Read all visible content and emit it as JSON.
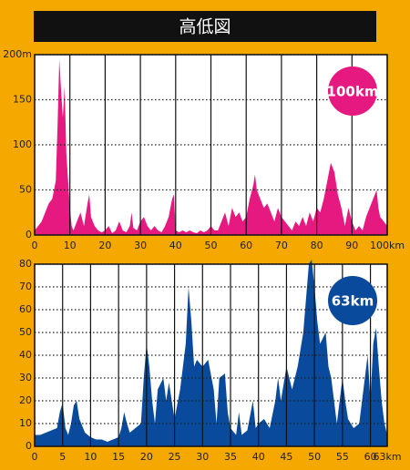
{
  "title": "高低図",
  "chart_data": [
    {
      "type": "area",
      "badge": "100km",
      "color": "#e5197f",
      "badge_color": "#e5197f",
      "x": [
        0,
        1,
        2,
        3,
        4,
        5,
        6,
        6.5,
        7,
        7.5,
        8,
        8.5,
        9,
        10,
        10.5,
        11,
        12,
        13,
        14,
        15,
        15.5,
        16,
        17,
        18,
        19,
        20,
        21,
        22,
        23,
        24,
        25,
        26,
        27,
        27.5,
        28,
        29,
        30,
        31,
        32,
        33,
        34,
        35,
        36,
        37,
        38,
        39,
        39.5,
        40,
        41,
        42,
        43,
        44,
        45,
        46,
        47,
        48,
        49,
        50,
        51,
        52,
        53,
        54,
        55,
        56,
        57,
        58,
        59,
        60,
        61,
        62,
        62.5,
        63,
        64,
        65,
        66,
        67,
        68,
        69,
        70,
        71,
        72,
        73,
        74,
        75,
        76,
        77,
        78,
        79,
        80,
        81,
        82,
        83,
        84,
        85,
        86,
        87,
        88,
        89,
        90,
        91,
        92,
        93,
        94,
        95,
        96,
        97,
        97.5,
        98,
        99,
        100
      ],
      "values": [
        5,
        10,
        15,
        25,
        35,
        40,
        60,
        120,
        195,
        160,
        130,
        165,
        90,
        30,
        10,
        5,
        15,
        25,
        10,
        35,
        45,
        20,
        10,
        5,
        3,
        5,
        10,
        2,
        5,
        15,
        5,
        3,
        10,
        25,
        8,
        5,
        15,
        20,
        10,
        5,
        10,
        5,
        3,
        10,
        20,
        40,
        45,
        5,
        3,
        5,
        3,
        5,
        3,
        2,
        5,
        3,
        5,
        10,
        5,
        5,
        15,
        25,
        10,
        30,
        20,
        25,
        15,
        20,
        40,
        55,
        67,
        50,
        40,
        30,
        35,
        25,
        15,
        30,
        20,
        15,
        10,
        5,
        15,
        10,
        20,
        10,
        25,
        15,
        30,
        25,
        40,
        60,
        80,
        70,
        45,
        30,
        10,
        30,
        15,
        5,
        10,
        5,
        20,
        30,
        40,
        50,
        30,
        20,
        15,
        10
      ],
      "xlim": [
        0,
        100
      ],
      "xticks": [
        0,
        10,
        20,
        30,
        40,
        50,
        60,
        70,
        80,
        90,
        {
          "value": 100,
          "label": "100km"
        }
      ],
      "ylim": [
        0,
        200
      ],
      "yticks": [
        0,
        50,
        100,
        150,
        {
          "value": 200,
          "label": "200m"
        }
      ]
    },
    {
      "type": "area",
      "badge": "63km",
      "color": "#0a4a9c",
      "badge_color": "#0a4a9c",
      "x": [
        0,
        1,
        2,
        3,
        4,
        4.5,
        5,
        5.5,
        6,
        6.5,
        7,
        7.5,
        8,
        9,
        10,
        11,
        12,
        13,
        14,
        15,
        15.5,
        16,
        16.5,
        17,
        18,
        19,
        19.5,
        20,
        20.5,
        21,
        21.5,
        22,
        23,
        23.5,
        24,
        25,
        26,
        26.5,
        27,
        27.5,
        28,
        28.5,
        29,
        30,
        31,
        32,
        32.5,
        33,
        34,
        34.5,
        35,
        36,
        36.5,
        37,
        38,
        39,
        39.5,
        40,
        41,
        42,
        43,
        43.5,
        44,
        45,
        46,
        47,
        48,
        49,
        49.5,
        50,
        50.5,
        51,
        52,
        52.5,
        53,
        54,
        55,
        55.5,
        56,
        57,
        58,
        59,
        59.5,
        60,
        60.5,
        61,
        61.5,
        62,
        62.5,
        63
      ],
      "values": [
        5,
        5,
        6,
        7,
        8,
        15,
        19,
        8,
        5,
        10,
        18,
        20,
        12,
        6,
        4,
        3,
        3,
        2,
        3,
        4,
        8,
        15,
        10,
        6,
        8,
        10,
        30,
        45,
        35,
        20,
        10,
        25,
        30,
        20,
        28,
        12,
        25,
        35,
        45,
        70,
        55,
        35,
        38,
        35,
        38,
        25,
        10,
        30,
        32,
        15,
        8,
        5,
        15,
        5,
        7,
        20,
        8,
        10,
        12,
        8,
        20,
        30,
        20,
        35,
        25,
        35,
        50,
        80,
        82,
        70,
        55,
        45,
        50,
        35,
        30,
        10,
        30,
        20,
        12,
        8,
        10,
        30,
        40,
        20,
        45,
        52,
        35,
        20,
        10,
        5
      ],
      "xlim": [
        0,
        63
      ],
      "xticks": [
        0,
        5,
        10,
        15,
        20,
        25,
        30,
        35,
        40,
        45,
        50,
        55,
        60,
        {
          "value": 63,
          "label": "63km"
        }
      ],
      "ylim": [
        0,
        80
      ],
      "yticks": [
        0,
        10,
        20,
        30,
        40,
        50,
        60,
        70,
        80
      ]
    }
  ]
}
